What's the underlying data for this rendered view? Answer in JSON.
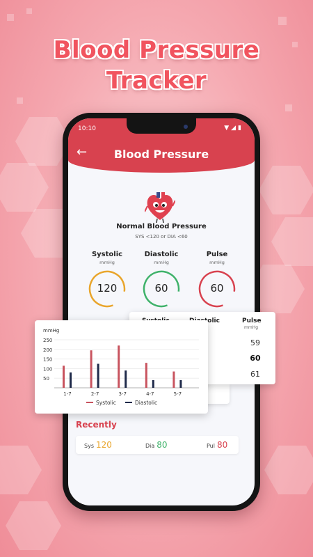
{
  "promo": {
    "title_line1": "Blood Pressure",
    "title_line2": "Tracker"
  },
  "status_bar": {
    "time": "10:10",
    "icons": [
      "wifi-icon",
      "signal-icon",
      "battery-icon"
    ]
  },
  "header": {
    "title": "Blood Pressure",
    "back_icon": "arrow-left-icon"
  },
  "result": {
    "icon": "heart-mascot-icon",
    "title": "Normal Blood Pressure",
    "range": "SYS <120 or DIA <60"
  },
  "metrics": [
    {
      "label": "Systolic",
      "unit": "mmHg",
      "value": "120",
      "color": "#e9a52b"
    },
    {
      "label": "Diastolic",
      "unit": "mmHg",
      "value": "60",
      "color": "#3fb26a"
    },
    {
      "label": "Pulse",
      "unit": "mmHg",
      "value": "60",
      "color": "#d8424f"
    }
  ],
  "table": {
    "headers": [
      "Systolic",
      "Diastolic",
      "Pulse"
    ],
    "pulse_unit": "mmHg",
    "pulse_values": [
      "59",
      "60",
      "61"
    ]
  },
  "recent": {
    "title": "Recently",
    "sys_label": "Sys",
    "sys_value": "120",
    "dia_label": "Dia",
    "dia_value": "80",
    "pul_label": "Pul",
    "pul_value": "80",
    "colors": {
      "sys": "#e9a52b",
      "dia": "#3fb26a",
      "pul": "#d8424f"
    }
  },
  "chart_data": {
    "type": "bar",
    "ylabel": "mmHg",
    "categories": [
      "1-7",
      "2-7",
      "3-7",
      "4-7",
      "5-7"
    ],
    "yticks": [
      250,
      200,
      150,
      100,
      50
    ],
    "ylim": [
      0,
      250
    ],
    "grid": true,
    "legend": "bottom",
    "series": [
      {
        "name": "Systolic",
        "color": "#c8535e",
        "values": [
          115,
          195,
          220,
          130,
          85
        ]
      },
      {
        "name": "Diastolic",
        "color": "#1f2a4a",
        "values": [
          80,
          125,
          90,
          40,
          40
        ]
      }
    ]
  }
}
